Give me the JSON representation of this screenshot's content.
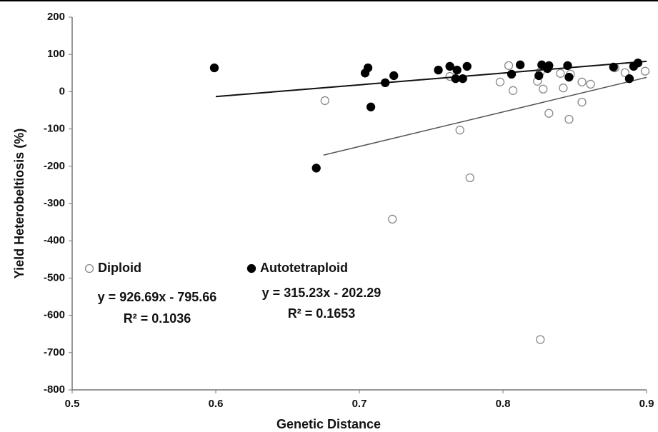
{
  "chart_data": {
    "type": "scatter",
    "xlabel": "Genetic Distance",
    "ylabel": "Yield Heterobeltiosis (%)",
    "xlim": [
      0.5,
      0.9
    ],
    "xticks": [
      0.5,
      0.6,
      0.7,
      0.8,
      0.9
    ],
    "ylim": [
      -800,
      200
    ],
    "yticks": [
      -800,
      -700,
      -600,
      -500,
      -400,
      -300,
      -200,
      -100,
      0,
      100,
      200
    ],
    "grid": false,
    "series": [
      {
        "name": "Diploid",
        "color": "#888888",
        "filled": false,
        "x": [
          0.676,
          0.723,
          0.77,
          0.777,
          0.763,
          0.798,
          0.804,
          0.807,
          0.824,
          0.826,
          0.828,
          0.832,
          0.826,
          0.842,
          0.846,
          0.84,
          0.847,
          0.855,
          0.855,
          0.861,
          0.878,
          0.885,
          0.899
        ],
        "values": [
          -24,
          -342,
          -103,
          -231,
          41,
          26,
          70,
          3,
          28,
          53,
          7,
          -58,
          -665,
          10,
          -74,
          49,
          47,
          -28,
          26,
          20,
          64,
          51,
          55
        ],
        "equation": "y = 926.69x - 795.66",
        "r2": "R² = 0.1036",
        "trendline": {
          "x": [
            0.675,
            0.9
          ],
          "y": [
            -170.14,
            38.36
          ]
        }
      },
      {
        "name": "Autotetraploid",
        "color": "#000000",
        "filled": true,
        "x": [
          0.599,
          0.67,
          0.704,
          0.706,
          0.708,
          0.718,
          0.724,
          0.755,
          0.763,
          0.767,
          0.768,
          0.772,
          0.775,
          0.806,
          0.812,
          0.825,
          0.827,
          0.831,
          0.832,
          0.845,
          0.846,
          0.877,
          0.888,
          0.891,
          0.894
        ],
        "values": [
          64,
          -205,
          50,
          64,
          -41,
          24,
          43,
          58,
          68,
          35,
          58,
          35,
          68,
          47,
          72,
          43,
          72,
          62,
          70,
          70,
          39,
          66,
          35,
          68,
          77
        ],
        "equation": "y = 315.23x - 202.29",
        "r2": "R² = 0.1653",
        "trendline": {
          "x": [
            0.6,
            0.9
          ],
          "y": [
            -13.15,
            81.42
          ]
        }
      }
    ]
  }
}
